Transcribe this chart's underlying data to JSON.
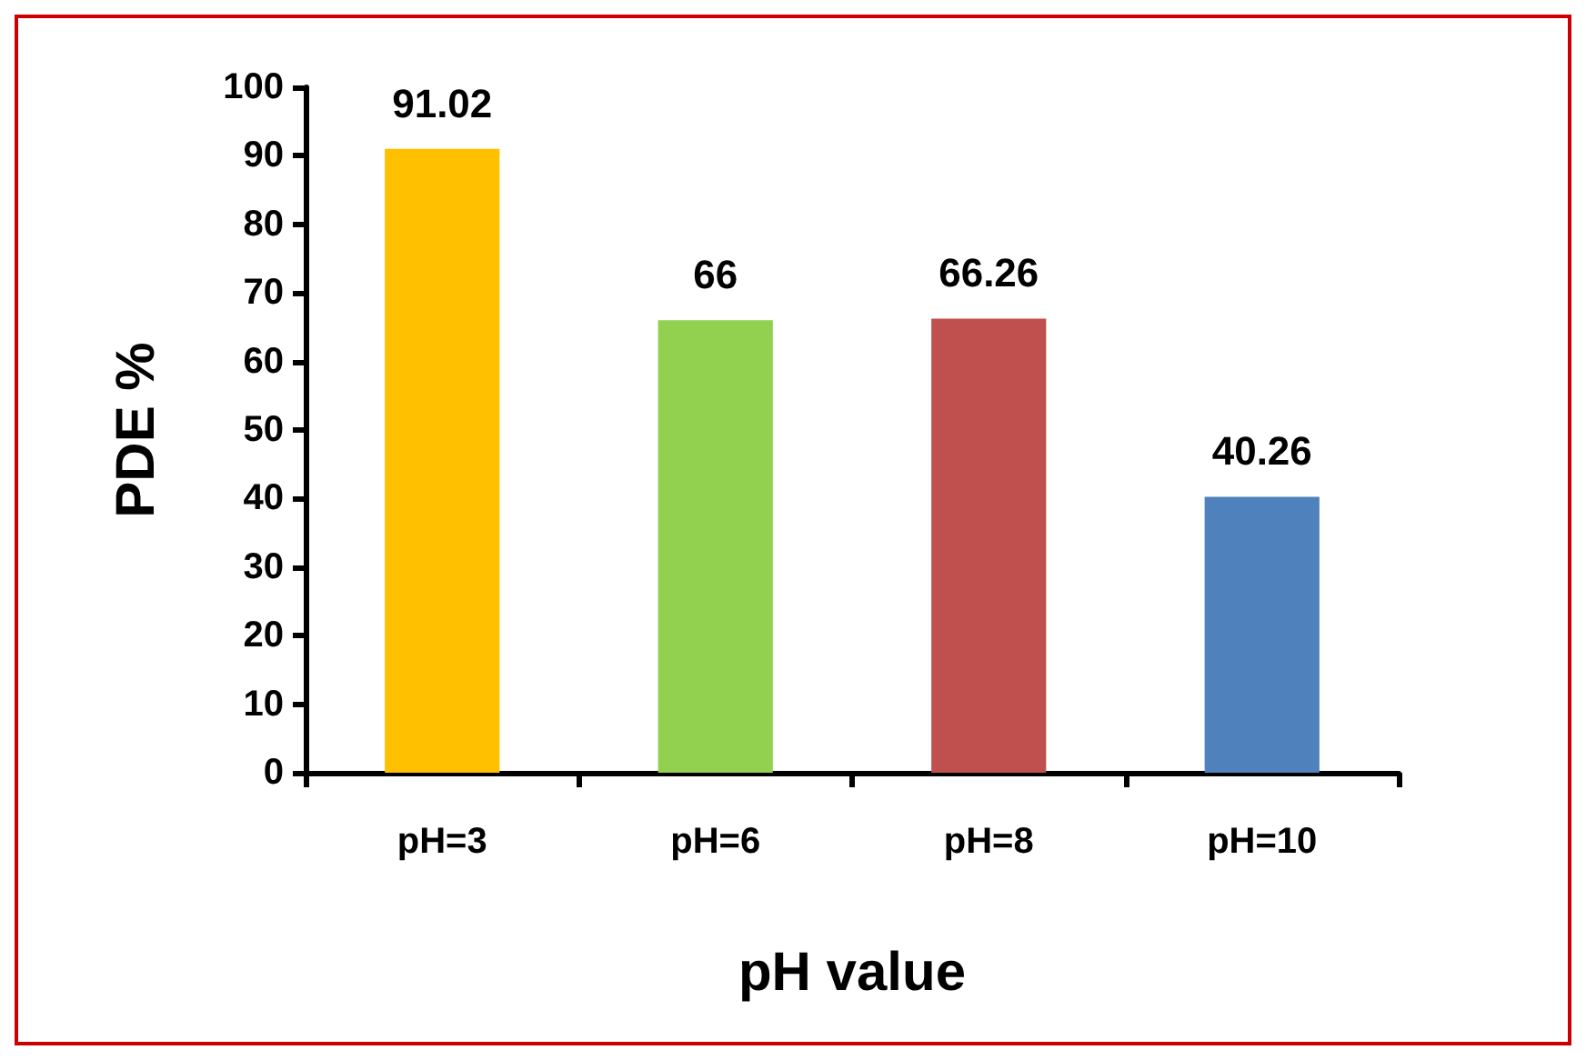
{
  "chart_data": {
    "type": "bar",
    "xlabel": "pH value",
    "ylabel": "PDE %",
    "categories": [
      "pH=3",
      "pH=6",
      "pH=8",
      "pH=10"
    ],
    "values": [
      91.02,
      66,
      66.26,
      40.26
    ],
    "colors": [
      "#ffc000",
      "#92d050",
      "#c0504d",
      "#4f81bd"
    ],
    "ylim": [
      0,
      100
    ],
    "yticks": [
      0,
      10,
      20,
      30,
      40,
      50,
      60,
      70,
      80,
      90,
      100
    ],
    "data_labels": true,
    "grid": false
  }
}
